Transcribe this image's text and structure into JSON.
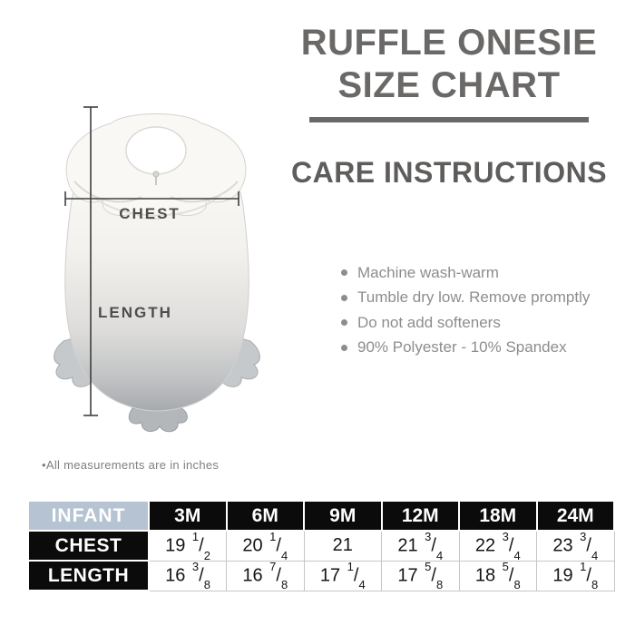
{
  "title": {
    "line1": "RUFFLE ONESIE",
    "line2": "SIZE CHART"
  },
  "care": {
    "heading": "CARE INSTRUCTIONS",
    "items": [
      "Machine wash-warm",
      "Tumble dry low. Remove promptly",
      "Do not add softeners",
      "90% Polyester - 10% Spandex"
    ]
  },
  "diagram": {
    "chest_label": "CHEST",
    "length_label": "LENGTH"
  },
  "note": {
    "text": "•All measurements are in inches"
  },
  "size_table": {
    "header": {
      "col0": "INFANT",
      "sizes": [
        "3M",
        "6M",
        "9M",
        "12M",
        "18M",
        "24M"
      ]
    },
    "rows": [
      {
        "label": "CHEST",
        "values": [
          "19 1/2",
          "20 1/4",
          "21",
          "21 3/4",
          "22 3/4",
          "23 3/4"
        ]
      },
      {
        "label": "LENGTH",
        "values": [
          "16 3/8",
          "16 7/8",
          "17 1/4",
          "17 5/8",
          "18 5/8",
          "19 1/8"
        ]
      }
    ]
  },
  "colors": {
    "title_gray": "#6b6968",
    "care_text_gray": "#8d8d8d",
    "infant_header_bg": "#b6c3d3",
    "table_black": "#0b0b0b"
  }
}
